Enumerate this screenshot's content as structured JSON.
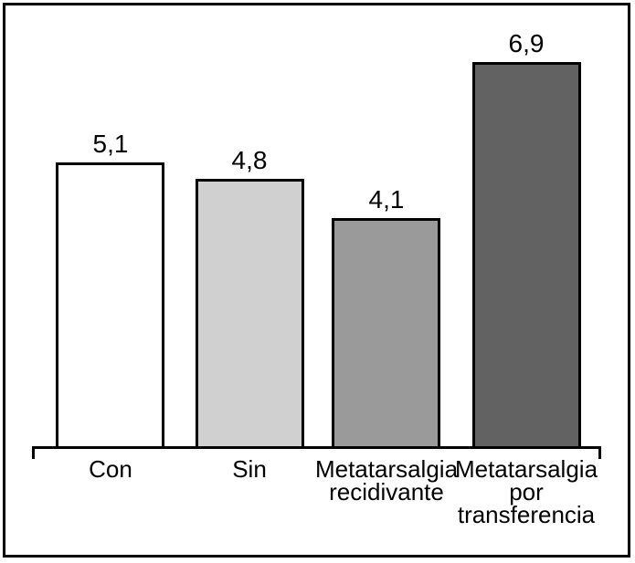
{
  "chart_data": {
    "type": "bar",
    "categories": [
      "Con",
      "Sin",
      "Metatarsalgia\nrecidivante",
      "Metatarsalgia\npor\ntransferencia"
    ],
    "values": [
      5.1,
      4.8,
      4.1,
      6.9
    ],
    "value_labels": [
      "5,1",
      "4,8",
      "4,1",
      "6,9"
    ],
    "bar_colors": [
      "#ffffff",
      "#d0d0d0",
      "#9a9a9a",
      "#626262"
    ],
    "bar_border_color": "#000000",
    "axis_color": "#000000",
    "frame_color": "#000000",
    "title": "",
    "xlabel": "",
    "ylabel": "",
    "ylim": [
      0,
      7.5
    ],
    "grid": false,
    "legend": false,
    "y_axis_visible": false,
    "x_axis_style": "baseline-with-end-ticks",
    "value_label_format": "decimal-comma"
  }
}
